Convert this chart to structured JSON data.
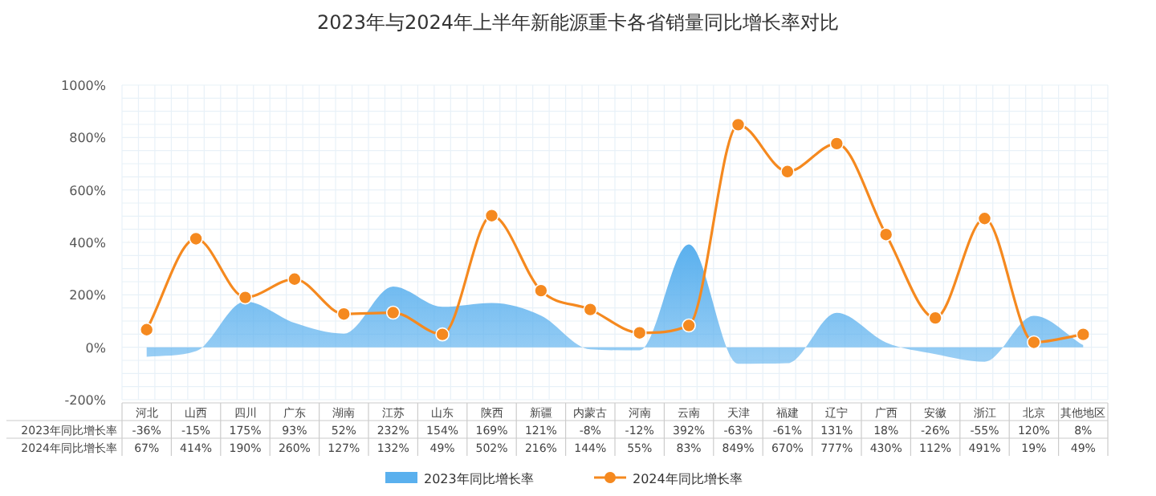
{
  "chart_data": {
    "type": "area",
    "title": "2023年与2024年上半年新能源重卡各省销量同比增长率对比",
    "categories": [
      "河北",
      "山西",
      "四川",
      "广东",
      "湖南",
      "江苏",
      "山东",
      "陕西",
      "新疆",
      "内蒙古",
      "河南",
      "云南",
      "天津",
      "福建",
      "辽宁",
      "广西",
      "安徽",
      "浙江",
      "北京",
      "其他地区"
    ],
    "series": [
      {
        "name": "2023年同比增长率",
        "color": "#5ab0ee",
        "values": [
          -36,
          -15,
          175,
          93,
          52,
          232,
          154,
          169,
          121,
          -8,
          -12,
          392,
          -63,
          -61,
          131,
          18,
          -26,
          -55,
          120,
          8
        ],
        "value_labels": [
          "-36%",
          "-15%",
          "175%",
          "93%",
          "52%",
          "232%",
          "154%",
          "169%",
          "121%",
          "-8%",
          "-12%",
          "392%",
          "-63%",
          "-61%",
          "131%",
          "18%",
          "-26%",
          "-55%",
          "120%",
          "8%"
        ]
      },
      {
        "name": "2024年同比增长率",
        "type": "line",
        "color": "#f5891f",
        "marker": "circle",
        "values": [
          67,
          414,
          190,
          260,
          127,
          132,
          49,
          502,
          216,
          144,
          55,
          83,
          849,
          670,
          777,
          430,
          112,
          491,
          19,
          49
        ],
        "value_labels": [
          "67%",
          "414%",
          "190%",
          "260%",
          "127%",
          "132%",
          "49%",
          "502%",
          "216%",
          "144%",
          "55%",
          "83%",
          "849%",
          "670%",
          "777%",
          "430%",
          "112%",
          "491%",
          "19%",
          "49%"
        ]
      }
    ],
    "ylim": [
      -200,
      1000
    ],
    "yticks": [
      {
        "value": -200,
        "label": "-200%"
      },
      {
        "value": 0,
        "label": "0%"
      },
      {
        "value": 200,
        "label": "200%"
      },
      {
        "value": 400,
        "label": "400%"
      },
      {
        "value": 600,
        "label": "600%"
      },
      {
        "value": 800,
        "label": "800%"
      },
      {
        "value": 1000,
        "label": "1000%"
      }
    ],
    "grid": true,
    "legend": "bottom",
    "data_labels": true
  }
}
